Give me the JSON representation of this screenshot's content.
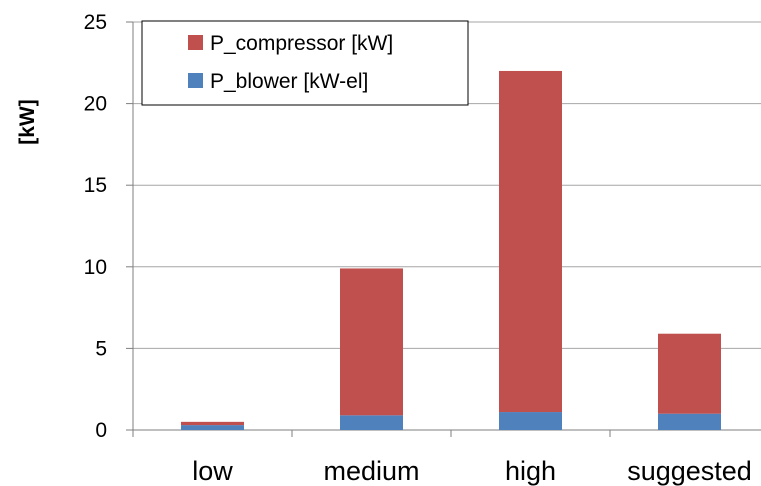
{
  "chart_data": {
    "type": "bar",
    "stacked": true,
    "categories": [
      "low",
      "medium",
      "high",
      "suggested"
    ],
    "series": [
      {
        "name": "P_blower [kW-el]",
        "values": [
          0.3,
          0.9,
          1.1,
          1.0
        ],
        "color": "#4F81BD"
      },
      {
        "name": "P_compressor [kW]",
        "values": [
          0.2,
          9.0,
          20.9,
          4.9
        ],
        "color": "#C0504D"
      }
    ],
    "legend_order": [
      "P_compressor [kW]",
      "P_blower [kW-el]"
    ],
    "legend_position": "top-left",
    "title": "",
    "xlabel": "",
    "ylabel": "[kW]",
    "ylim": [
      0,
      25
    ],
    "yticks": [
      0,
      5,
      10,
      15,
      20,
      25
    ],
    "grid": true
  }
}
